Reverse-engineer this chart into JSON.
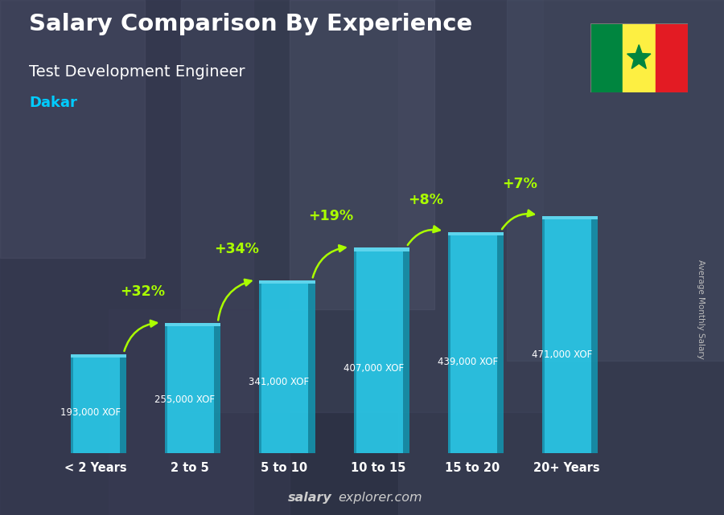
{
  "title": "Salary Comparison By Experience",
  "subtitle": "Test Development Engineer",
  "city": "Dakar",
  "ylabel": "Average Monthly Salary",
  "watermark_bold": "salary",
  "watermark_normal": "explorer.com",
  "categories": [
    "< 2 Years",
    "2 to 5",
    "5 to 10",
    "10 to 15",
    "15 to 20",
    "20+ Years"
  ],
  "values": [
    193000,
    255000,
    341000,
    407000,
    439000,
    471000
  ],
  "labels": [
    "193,000 XOF",
    "255,000 XOF",
    "341,000 XOF",
    "407,000 XOF",
    "439,000 XOF",
    "471,000 XOF"
  ],
  "pct_labels": [
    "+32%",
    "+34%",
    "+19%",
    "+8%",
    "+7%"
  ],
  "bar_front_color": "#29c8e8",
  "bar_side_color": "#1590aa",
  "bar_top_color": "#60ddf5",
  "bar_dark_color": "#0d6e88",
  "title_color": "#ffffff",
  "subtitle_color": "#ffffff",
  "city_color": "#00ccff",
  "label_color": "#cccccc",
  "pct_color": "#aaff00",
  "arrow_color": "#aaff00",
  "xlabel_color": "#ffffff",
  "bg_color": "#2d3040",
  "watermark_color": "#cccccc",
  "ylim_max": 560000,
  "flag_green": "#00853F",
  "flag_yellow": "#FDEF42",
  "flag_red": "#E31B23"
}
